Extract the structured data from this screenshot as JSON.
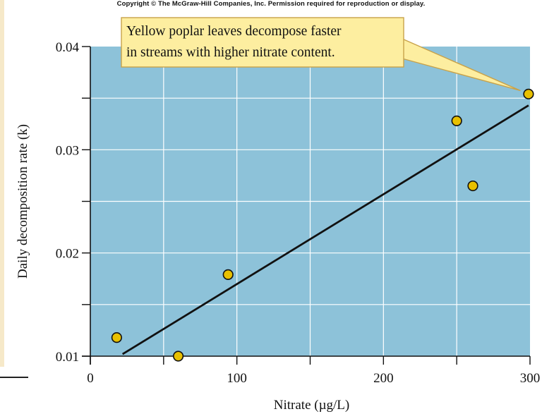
{
  "copyright": "Copyright © The McGraw-Hill Companies, Inc. Permission required for reproduction or display.",
  "colors": {
    "plot_bg": "#8dc2d9",
    "grid": "#ffffff",
    "point": "#e8c000",
    "callout_bg": "#fdeea0",
    "callout_border": "#c8a24a"
  },
  "chart_data": {
    "type": "scatter",
    "title": "",
    "xlabel": "Nitrate (µg/L)",
    "ylabel": "Daily decomposition rate (k)",
    "xlim": [
      0,
      300
    ],
    "ylim": [
      0.01,
      0.04
    ],
    "x_ticks": [
      0,
      100,
      200,
      300
    ],
    "x_tick_labels": [
      "0",
      "100",
      "200",
      "300"
    ],
    "y_ticks": [
      0.01,
      0.02,
      0.03,
      0.04
    ],
    "y_tick_labels": [
      "0.01",
      "0.02",
      "0.03",
      "0.04"
    ],
    "x_grid_lines": [
      50,
      100,
      150,
      200,
      250
    ],
    "y_grid_lines": [
      0.015,
      0.02,
      0.025,
      0.03,
      0.035
    ],
    "points": [
      {
        "x": 18,
        "y": 0.0118
      },
      {
        "x": 60,
        "y": 0.01
      },
      {
        "x": 94,
        "y": 0.0179
      },
      {
        "x": 250,
        "y": 0.0328
      },
      {
        "x": 261,
        "y": 0.0265
      },
      {
        "x": 299,
        "y": 0.0354
      }
    ],
    "trendline": {
      "x": [
        22,
        299
      ],
      "y": [
        0.0102,
        0.0343
      ]
    },
    "annotation": {
      "lines": [
        "Yellow poplar leaves decompose faster",
        "in streams with higher nitrate content."
      ],
      "points_to": {
        "x": 299,
        "y": 0.0354
      }
    }
  }
}
